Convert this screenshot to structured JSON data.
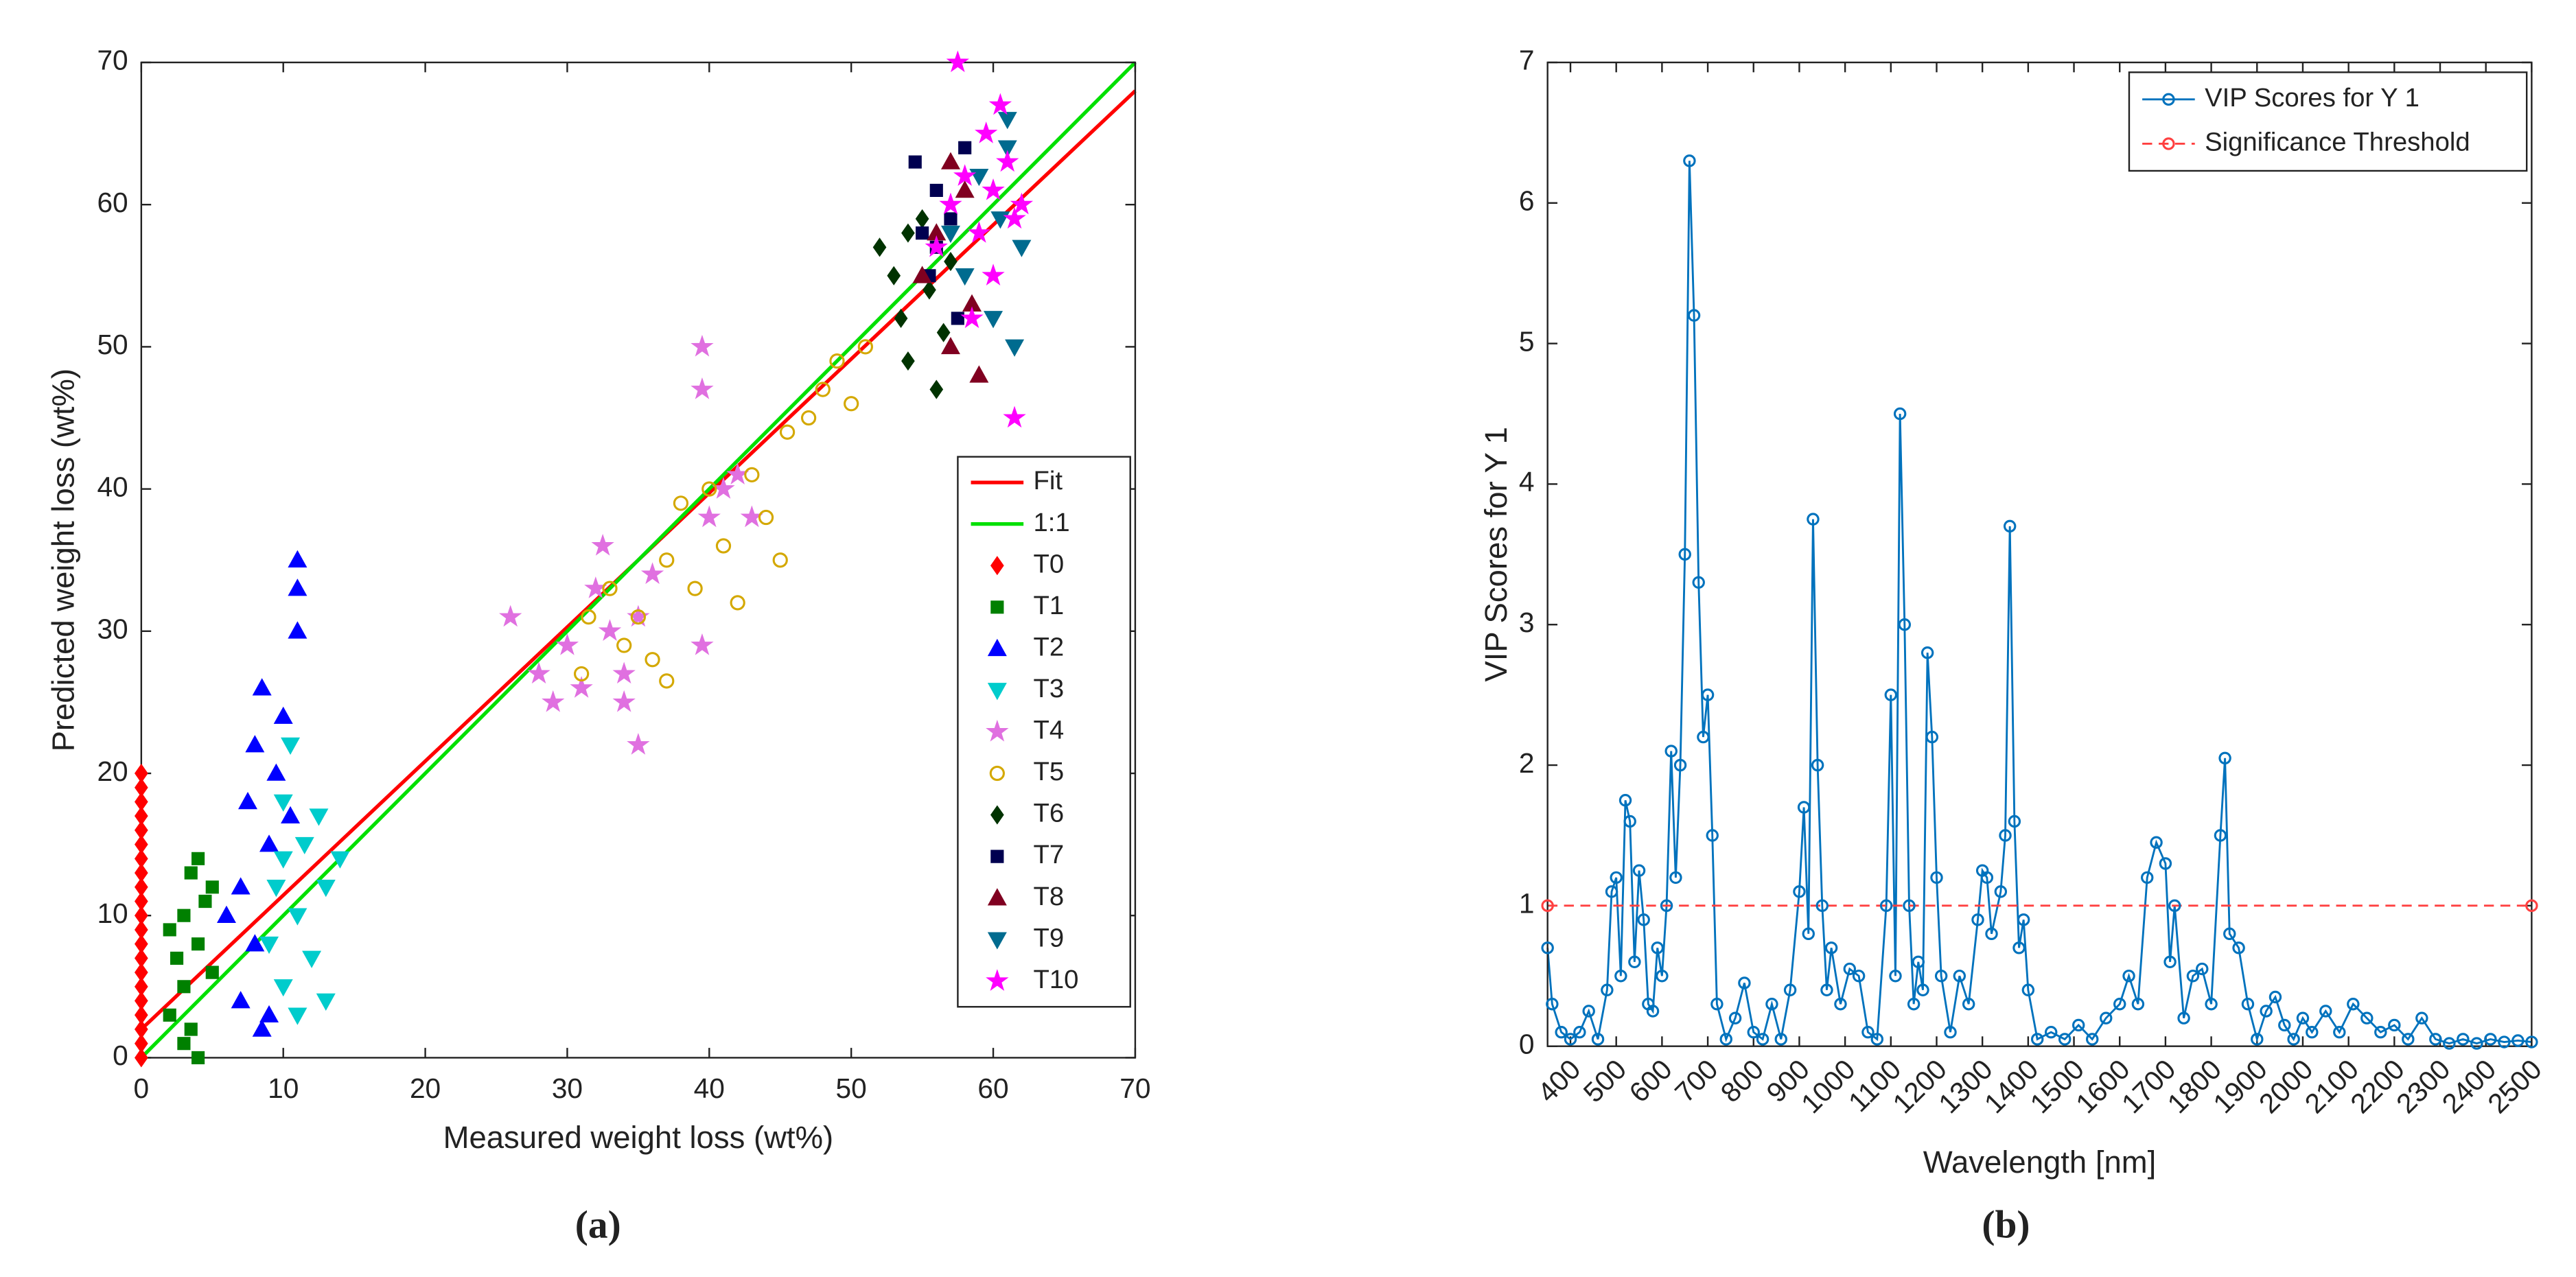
{
  "chart_data": [
    {
      "type": "scatter",
      "caption": "(a)",
      "xlabel": "Measured weight loss (wt%)",
      "ylabel": "Predicted weight loss (wt%)",
      "xlim": [
        0,
        70
      ],
      "ylim": [
        0,
        70
      ],
      "xticks": [
        0,
        10,
        20,
        30,
        40,
        50,
        60,
        70
      ],
      "yticks": [
        0,
        10,
        20,
        30,
        40,
        50,
        60,
        70
      ],
      "grid": false,
      "legend": "southeast",
      "series": [
        {
          "name": "Fit",
          "color": "#ff0000",
          "style": "line",
          "x": [
            0,
            70
          ],
          "values": [
            2,
            68
          ]
        },
        {
          "name": "1:1",
          "color": "#00e000",
          "style": "line",
          "x": [
            0,
            70
          ],
          "values": [
            0,
            70
          ]
        },
        {
          "name": "T0",
          "color": "#ff0000",
          "marker": "d",
          "x": [
            0,
            0,
            0,
            0,
            0,
            0,
            0,
            0,
            0,
            0,
            0,
            0,
            0,
            0,
            0,
            0,
            0,
            0,
            0,
            0,
            0
          ],
          "values": [
            0,
            1,
            2,
            3,
            4,
            5,
            6,
            7,
            8,
            9,
            10,
            11,
            12,
            13,
            14,
            15,
            16,
            17,
            18,
            19,
            20
          ]
        },
        {
          "name": "T1",
          "color": "#008000",
          "marker": "s",
          "x": [
            2,
            2.5,
            3,
            3,
            3.5,
            3.5,
            4,
            4,
            4,
            4.5,
            5,
            5,
            2,
            3
          ],
          "values": [
            3,
            7,
            10,
            5,
            13,
            2,
            0,
            8,
            14,
            11,
            6,
            12,
            9,
            1
          ]
        },
        {
          "name": "T2",
          "color": "#0000ff",
          "marker": "^",
          "x": [
            6,
            7,
            7,
            7.5,
            8,
            8,
            8.5,
            9,
            9,
            9.5,
            10,
            10.5,
            11,
            11,
            11,
            8.5
          ],
          "values": [
            10,
            4,
            12,
            18,
            8,
            22,
            26,
            15,
            3,
            20,
            24,
            17,
            30,
            35,
            33,
            2
          ]
        },
        {
          "name": "T3",
          "color": "#00cccc",
          "marker": "v",
          "x": [
            9,
            9.5,
            10,
            10,
            10.5,
            11,
            11.5,
            12,
            12.5,
            13,
            13,
            14,
            10,
            11
          ],
          "values": [
            8,
            12,
            5,
            18,
            22,
            10,
            15,
            7,
            17,
            4,
            12,
            14,
            14,
            3
          ]
        },
        {
          "name": "T4",
          "color": "#e070e0",
          "marker": "p",
          "x": [
            26,
            28,
            29,
            30,
            31,
            32,
            32.5,
            33,
            34,
            35,
            35,
            36,
            39.5,
            39.5,
            39.5,
            40,
            41,
            42,
            43,
            34
          ],
          "values": [
            31,
            27,
            25,
            29,
            26,
            33,
            36,
            30,
            27,
            22,
            31,
            34,
            50,
            47,
            29,
            38,
            40,
            41,
            38,
            25
          ]
        },
        {
          "name": "T5",
          "color": "#d4a800",
          "marker": "o",
          "x": [
            31,
            31.5,
            33,
            34,
            35,
            36,
            37,
            37,
            38,
            39,
            40,
            41,
            42,
            43,
            44,
            45,
            45.5,
            47,
            48,
            49,
            50,
            51
          ],
          "values": [
            27,
            31,
            33,
            29,
            31,
            28,
            26.5,
            35,
            39,
            33,
            40,
            36,
            32,
            41,
            38,
            35,
            44,
            45,
            47,
            49,
            46,
            50
          ]
        },
        {
          "name": "T6",
          "color": "#003300",
          "marker": "d",
          "x": [
            52,
            53,
            53.5,
            54,
            54,
            55,
            55.5,
            56,
            56.5,
            57
          ],
          "values": [
            57,
            55,
            52,
            58,
            49,
            59,
            54,
            47,
            51,
            56
          ]
        },
        {
          "name": "T7",
          "color": "#000050",
          "marker": "s",
          "x": [
            54.5,
            55,
            55.5,
            56,
            57,
            57.5,
            58,
            56
          ],
          "values": [
            63,
            58,
            55,
            61,
            59,
            52,
            64,
            57
          ]
        },
        {
          "name": "T8",
          "color": "#800020",
          "marker": "^",
          "x": [
            55,
            56,
            57,
            58,
            58.5,
            59,
            57
          ],
          "values": [
            55,
            58,
            50,
            61,
            53,
            48,
            63
          ]
        },
        {
          "name": "T9",
          "color": "#006b8f",
          "marker": "v",
          "x": [
            57,
            58,
            59,
            60,
            60.5,
            61,
            61.5,
            62,
            61
          ],
          "values": [
            58,
            55,
            62,
            52,
            59,
            64,
            50,
            57,
            66
          ]
        },
        {
          "name": "T10",
          "color": "#ff00ff",
          "marker": "p",
          "x": [
            56,
            57,
            57.5,
            58,
            59,
            59.5,
            60,
            60,
            60.5,
            61,
            61.5,
            62,
            61.5,
            58.5
          ],
          "values": [
            57,
            60,
            70,
            62,
            58,
            65,
            55,
            61,
            67,
            63,
            59,
            60,
            45,
            52
          ]
        }
      ]
    },
    {
      "type": "line",
      "caption": "(b)",
      "xlabel": "Wavelength [nm]",
      "ylabel": "VIP Scores for Y 1",
      "xlim": [
        350,
        2500
      ],
      "ylim": [
        0,
        7
      ],
      "xticks": [
        400,
        500,
        600,
        700,
        800,
        900,
        1000,
        1100,
        1200,
        1300,
        1400,
        1500,
        1600,
        1700,
        1800,
        1900,
        2000,
        2100,
        2200,
        2300,
        2400,
        2500
      ],
      "yticks": [
        0,
        1,
        2,
        3,
        4,
        5,
        6,
        7
      ],
      "xtick_rotation": 45,
      "grid": false,
      "legend": "northeast",
      "series": [
        {
          "name": "VIP Scores for Y 1",
          "color": "#0072bd",
          "style": "solid",
          "marker": "o",
          "x": [
            350,
            360,
            380,
            400,
            420,
            440,
            460,
            480,
            490,
            500,
            510,
            520,
            530,
            540,
            550,
            560,
            570,
            580,
            590,
            600,
            610,
            620,
            630,
            640,
            650,
            660,
            670,
            680,
            690,
            700,
            710,
            720,
            740,
            760,
            780,
            800,
            820,
            840,
            860,
            880,
            900,
            910,
            920,
            930,
            940,
            950,
            960,
            970,
            990,
            1010,
            1030,
            1050,
            1070,
            1090,
            1100,
            1110,
            1120,
            1130,
            1140,
            1150,
            1160,
            1170,
            1180,
            1190,
            1200,
            1210,
            1230,
            1250,
            1270,
            1290,
            1300,
            1310,
            1320,
            1340,
            1350,
            1360,
            1370,
            1380,
            1390,
            1400,
            1420,
            1450,
            1480,
            1510,
            1540,
            1570,
            1600,
            1620,
            1640,
            1660,
            1680,
            1700,
            1710,
            1720,
            1740,
            1760,
            1780,
            1800,
            1820,
            1830,
            1840,
            1860,
            1880,
            1900,
            1920,
            1940,
            1960,
            1980,
            2000,
            2020,
            2050,
            2080,
            2110,
            2140,
            2170,
            2200,
            2230,
            2260,
            2290,
            2320,
            2350,
            2380,
            2410,
            2440,
            2470,
            2500
          ],
          "values": [
            0.7,
            0.3,
            0.1,
            0.05,
            0.1,
            0.25,
            0.05,
            0.4,
            1.1,
            1.2,
            0.5,
            1.75,
            1.6,
            0.6,
            1.25,
            0.9,
            0.3,
            0.25,
            0.7,
            0.5,
            1.0,
            2.1,
            1.2,
            2.0,
            3.5,
            6.3,
            5.2,
            3.3,
            2.2,
            2.5,
            1.5,
            0.3,
            0.05,
            0.2,
            0.45,
            0.1,
            0.05,
            0.3,
            0.05,
            0.4,
            1.1,
            1.7,
            0.8,
            3.75,
            2.0,
            1.0,
            0.4,
            0.7,
            0.3,
            0.55,
            0.5,
            0.1,
            0.05,
            1.0,
            2.5,
            0.5,
            4.5,
            3.0,
            1.0,
            0.3,
            0.6,
            0.4,
            2.8,
            2.2,
            1.2,
            0.5,
            0.1,
            0.5,
            0.3,
            0.9,
            1.25,
            1.2,
            0.8,
            1.1,
            1.5,
            3.7,
            1.6,
            0.7,
            0.9,
            0.4,
            0.05,
            0.1,
            0.05,
            0.15,
            0.05,
            0.2,
            0.3,
            0.5,
            0.3,
            1.2,
            1.45,
            1.3,
            0.6,
            1.0,
            0.2,
            0.5,
            0.55,
            0.3,
            1.5,
            2.05,
            0.8,
            0.7,
            0.3,
            0.05,
            0.25,
            0.35,
            0.15,
            0.05,
            0.2,
            0.1,
            0.25,
            0.1,
            0.3,
            0.2,
            0.1,
            0.15,
            0.05,
            0.2,
            0.05,
            0.02,
            0.05,
            0.02,
            0.05,
            0.03,
            0.04,
            0.03
          ]
        },
        {
          "name": "Significance Threshold",
          "color": "#ff4040",
          "style": "dashed",
          "marker": "o",
          "x": [
            350,
            2500
          ],
          "values": [
            1,
            1
          ]
        }
      ]
    }
  ]
}
